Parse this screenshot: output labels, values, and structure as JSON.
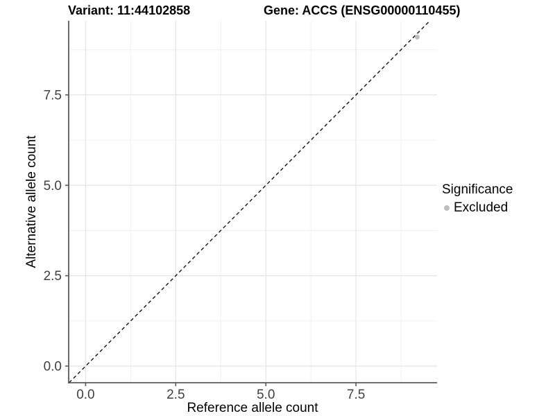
{
  "header": {
    "title_left": "Variant: 11:44102858",
    "title_right": "Gene: ACCS (ENSG00000110455)"
  },
  "axes": {
    "x_label": "Reference allele count",
    "y_label": "Alternative allele count"
  },
  "legend": {
    "title": "Significance",
    "entries": [
      {
        "label": "Excluded",
        "color": "#bebebe"
      }
    ]
  },
  "colors": {
    "background": "#ffffff",
    "axis_line": "#5a5a5a",
    "tick_text": "#404040",
    "grid_major": "#e4e4e4",
    "grid_minor": "#f0f0f0",
    "abline": "#111111",
    "point": "#bebebe"
  },
  "chart_data": {
    "type": "scatter",
    "title": "Variant: 11:44102858   Gene: ACCS (ENSG00000110455)",
    "xlabel": "Reference allele count",
    "ylabel": "Alternative allele count",
    "xlim": [
      -0.47,
      9.75
    ],
    "ylim": [
      -0.46,
      9.55
    ],
    "x_ticks": {
      "values": [
        0,
        2.5,
        5,
        7.5
      ],
      "labels": [
        "0.0",
        "2.5",
        "5.0",
        "7.5"
      ]
    },
    "y_ticks": {
      "values": [
        0,
        2.5,
        5,
        7.5
      ],
      "labels": [
        "0.0",
        "2.5",
        "5.0",
        "7.5"
      ]
    },
    "x_minor": [
      1.25,
      3.75,
      6.25,
      8.75
    ],
    "y_minor": [
      1.25,
      3.75,
      6.25,
      8.75
    ],
    "grid": "major-and-minor",
    "series": [
      {
        "name": "Excluded",
        "color": "#bebebe",
        "points": [
          {
            "x": 9.2,
            "y": 9.1
          }
        ]
      }
    ],
    "abline": {
      "slope": 1,
      "intercept": 0,
      "style": "dashed",
      "color": "#111111"
    },
    "legend_position": "right",
    "legend_title": "Significance"
  }
}
